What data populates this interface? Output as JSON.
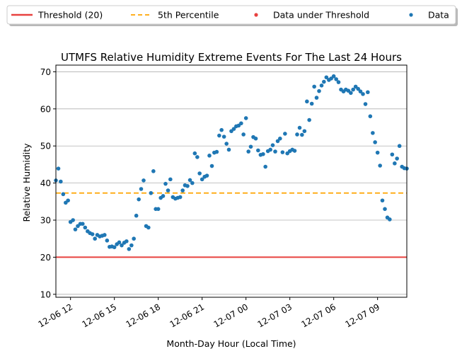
{
  "chart_data": {
    "type": "scatter",
    "title": "UTMFS Relative Humidity Extreme Events For The Last 24 Hours",
    "xlabel": "Month-Day Hour (Local Time)",
    "ylabel": "Relative Humidity",
    "ylim": [
      9.2,
      71.8
    ],
    "xlim_hours": [
      11.0,
      35.0
    ],
    "grid": "horizontal",
    "legend_placement": "top",
    "yticks": [
      10,
      20,
      30,
      40,
      50,
      60,
      70
    ],
    "xticks": [
      {
        "hour": 12,
        "label": "12-06 12"
      },
      {
        "hour": 15,
        "label": "12-06 15"
      },
      {
        "hour": 18,
        "label": "12-06 18"
      },
      {
        "hour": 21,
        "label": "12-06 21"
      },
      {
        "hour": 24,
        "label": "12-07 00"
      },
      {
        "hour": 27,
        "label": "12-07 03"
      },
      {
        "hour": 30,
        "label": "12-07 06"
      },
      {
        "hour": 33,
        "label": "12-07 09"
      }
    ],
    "legend": [
      {
        "label": "Threshold (20)",
        "kind": "solid-line",
        "color": "#e8413f"
      },
      {
        "label": "5th Percentile",
        "kind": "dashed-line",
        "color": "#ffa500"
      },
      {
        "label": "Data under Threshold",
        "kind": "dot",
        "color": "#e8413f"
      },
      {
        "label": "Data",
        "kind": "dot",
        "color": "#1f77b4"
      }
    ],
    "threshold": {
      "name": "Threshold (20)",
      "value": 20,
      "color": "#e8413f"
    },
    "percentile": {
      "name": "5th Percentile",
      "value": 37.3,
      "color": "#ffa500"
    },
    "series": [
      {
        "name": "Data",
        "color": "#1f77b4",
        "x": [
          11.0,
          11.17,
          11.33,
          11.5,
          11.67,
          11.83,
          12.0,
          12.17,
          12.33,
          12.5,
          12.67,
          12.83,
          13.0,
          13.17,
          13.33,
          13.5,
          13.67,
          13.83,
          14.0,
          14.17,
          14.33,
          14.5,
          14.67,
          14.83,
          15.0,
          15.17,
          15.33,
          15.5,
          15.67,
          15.83,
          16.0,
          16.17,
          16.33,
          16.5,
          16.67,
          16.83,
          17.0,
          17.17,
          17.33,
          17.5,
          17.67,
          17.83,
          18.0,
          18.17,
          18.33,
          18.5,
          18.67,
          18.83,
          19.0,
          19.17,
          19.33,
          19.5,
          19.67,
          19.83,
          20.0,
          20.17,
          20.33,
          20.5,
          20.67,
          20.83,
          21.0,
          21.17,
          21.33,
          21.5,
          21.67,
          21.83,
          22.0,
          22.17,
          22.33,
          22.5,
          22.67,
          22.83,
          23.0,
          23.17,
          23.33,
          23.5,
          23.67,
          23.83,
          24.0,
          24.17,
          24.33,
          24.5,
          24.67,
          24.83,
          25.0,
          25.17,
          25.33,
          25.5,
          25.67,
          25.83,
          26.0,
          26.17,
          26.33,
          26.5,
          26.67,
          26.83,
          27.0,
          27.17,
          27.33,
          27.5,
          27.67,
          27.83,
          28.0,
          28.17,
          28.33,
          28.5,
          28.67,
          28.83,
          29.0,
          29.17,
          29.33,
          29.5,
          29.67,
          29.83,
          30.0,
          30.17,
          30.33,
          30.5,
          30.67,
          30.83,
          31.0,
          31.17,
          31.33,
          31.5,
          31.67,
          31.83,
          32.0,
          32.17,
          32.33,
          32.5,
          32.67,
          32.83,
          33.0,
          33.17,
          33.33,
          33.5,
          33.67,
          33.83,
          34.0,
          34.17,
          34.33,
          34.5,
          34.67,
          34.83,
          35.0
        ],
        "values": [
          40.7,
          43.9,
          40.4,
          37.0,
          34.7,
          35.3,
          29.5,
          30.0,
          27.5,
          28.4,
          29.0,
          29.0,
          28.0,
          27.0,
          26.5,
          26.2,
          25.0,
          26.0,
          25.6,
          25.8,
          26.0,
          24.5,
          22.8,
          22.9,
          22.7,
          23.5,
          24.0,
          23.2,
          23.9,
          24.3,
          22.2,
          23.2,
          25.0,
          31.2,
          35.6,
          38.4,
          40.7,
          28.4,
          28.0,
          37.3,
          43.2,
          33.0,
          33.0,
          36.0,
          36.5,
          39.8,
          38.0,
          41.0,
          36.2,
          35.8,
          36.0,
          36.2,
          38.0,
          39.4,
          39.2,
          40.8,
          40.0,
          48.0,
          47.0,
          42.6,
          41.0,
          41.7,
          42.0,
          47.4,
          44.6,
          48.2,
          48.4,
          52.8,
          54.3,
          52.5,
          50.6,
          49.0,
          54.0,
          54.6,
          55.3,
          55.5,
          56.1,
          53.1,
          57.5,
          48.5,
          49.8,
          52.4,
          52.0,
          48.8,
          47.6,
          47.8,
          44.4,
          48.6,
          49.0,
          50.2,
          48.5,
          51.3,
          52.0,
          48.3,
          53.3,
          48.0,
          48.6,
          49.0,
          48.7,
          53.1,
          54.9,
          53.0,
          54.0,
          62.0,
          57.0,
          61.4,
          66.0,
          63.0,
          64.8,
          66.3,
          67.3,
          68.5,
          67.8,
          68.2,
          68.8,
          68.0,
          67.2,
          65.2,
          64.7,
          65.2,
          64.9,
          64.3,
          65.2,
          66.0,
          65.4,
          64.7,
          64.0,
          61.3,
          64.5,
          58.0,
          53.5,
          51.0,
          48.2,
          44.7,
          35.3,
          33.0,
          30.7,
          30.2,
          47.7,
          45.3,
          46.6,
          50.0,
          44.4,
          44.0,
          43.9
        ]
      },
      {
        "name": "Data under Threshold",
        "color": "#e8413f",
        "x": [],
        "values": []
      }
    ]
  }
}
